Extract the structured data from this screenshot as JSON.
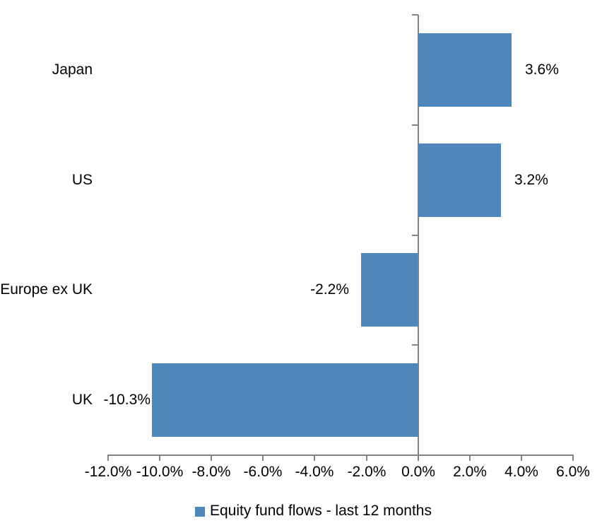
{
  "chart_data": {
    "type": "bar",
    "orientation": "horizontal",
    "title": "",
    "categories": [
      "Japan",
      "US",
      "Europe ex UK",
      "UK"
    ],
    "series": [
      {
        "name": "Equity fund flows - last 12 months",
        "values": [
          3.6,
          3.2,
          -2.2,
          -10.3
        ]
      }
    ],
    "value_labels": [
      "3.6%",
      "3.2%",
      "-2.2%",
      "-10.3%"
    ],
    "x_axis": {
      "min": -12.0,
      "max": 6.0,
      "tick_step": 2.0,
      "tick_values": [
        -12,
        -10,
        -8,
        -6,
        -4,
        -2,
        0,
        2,
        4,
        6
      ],
      "tick_labels": [
        "-12.0%",
        "-10.0%",
        "-8.0%",
        "-6.0%",
        "-4.0%",
        "-2.0%",
        "0.0%",
        "2.0%",
        "4.0%",
        "6.0%"
      ]
    },
    "y_axis": {
      "ticks_at_category_boundaries": true
    },
    "legend": {
      "position": "bottom",
      "marker": "square",
      "label": "Equity fund flows - last 12 months"
    },
    "grid": false,
    "colors": {
      "bar": "#4e87bb",
      "axis": "#828282",
      "text": "#000000",
      "background": "#ffffff"
    }
  }
}
